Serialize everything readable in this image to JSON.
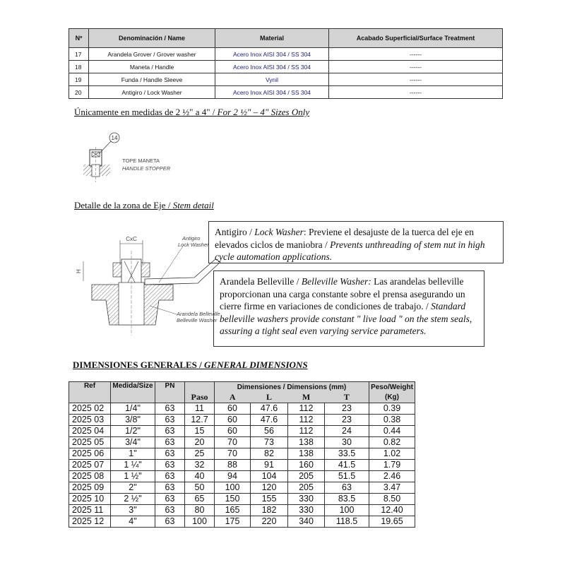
{
  "parts_table": {
    "headers": [
      "Nº",
      "Denominación / Name",
      "Material",
      "Acabado Superficial/Surface Treatment"
    ],
    "rows": [
      [
        "17",
        "Arandela Grover / Grover washer",
        "Acero Inox AISI 304  /  SS 304",
        "------"
      ],
      [
        "18",
        "Maneta / Handle",
        "Acero Inox AISI 304  /  SS 304",
        "------"
      ],
      [
        "19",
        "Funda / Handle Sleeve",
        "Vynil",
        "------"
      ],
      [
        "20",
        "Antigiro / Lock Washer",
        "Acero Inox AISI 304  /  SS 304",
        "------"
      ]
    ]
  },
  "sizes_note": {
    "es": "Únicamente en medidas de 2 ½\" a 4\" / ",
    "en": "For 2 ½\" – 4\" Sizes Only"
  },
  "stopper_drawing": {
    "callout": "14",
    "label_es": "TOPE MANETA",
    "label_en": "HANDLE STOPPER"
  },
  "stem_heading": {
    "es": "Detalle de la zona de Eje / ",
    "en": "Stem detail"
  },
  "stem_drawing": {
    "cxc": "CxC",
    "h": "H",
    "lock_es": "Antigiro",
    "lock_en": "Lock Washer",
    "bell_es": "Arandela Belleville",
    "bell_en": "Belleville Washer"
  },
  "lock_box": {
    "es_term": "Antigiro / ",
    "en_term": "Lock Washer",
    "es_text": ": Previene el desajuste de la tuerca del eje en elevados ciclos de maniobra / ",
    "en_text": "Prevents unthreading of stem nut in high cycle automation applications."
  },
  "belleville_box": {
    "es_term": "Arandela Belleville /  ",
    "en_term": "Belleville Washer:",
    "es_text": " Las arandelas belleville proporcionan una carga constante sobre el prensa asegurando un cierre firme en variaciones de condiciones de trabajo. / ",
    "en_text": "Standard belleville washers provide constant \" live load \" on the stem seals, assuring a tight seal even varying service parameters."
  },
  "dims_heading": {
    "es": "DIMENSIONES GENERALES / ",
    "en": "GENERAL DIMENSIONS"
  },
  "dims_table": {
    "headers": {
      "ref": "Ref",
      "size": "Medida/Size",
      "pn": "PN",
      "dims": "Dimensiones / Dimensions (mm)",
      "weight": "Peso/Weight",
      "weight_unit": "(Kg)",
      "paso": "Paso",
      "a": "A",
      "l": "L",
      "m": "M",
      "t": "T"
    },
    "rows": [
      [
        "2025 02",
        "1/4\"",
        "63",
        "11",
        "60",
        "47.6",
        "112",
        "23",
        "0.39"
      ],
      [
        "2025 03",
        "3/8\"",
        "63",
        "12.7",
        "60",
        "47.6",
        "112",
        "23",
        "0.38"
      ],
      [
        "2025 04",
        "1/2\"",
        "63",
        "15",
        "60",
        "56",
        "112",
        "24",
        "0.44"
      ],
      [
        "2025 05",
        "3/4\"",
        "63",
        "20",
        "70",
        "73",
        "138",
        "30",
        "0.82"
      ],
      [
        "2025 06",
        "1\"",
        "63",
        "25",
        "70",
        "82",
        "138",
        "33.5",
        "1.02"
      ],
      [
        "2025 07",
        "1 ¼\"",
        "63",
        "32",
        "88",
        "91",
        "160",
        "41.5",
        "1.79"
      ],
      [
        "2025 08",
        "1 ½\"",
        "63",
        "40",
        "94",
        "104",
        "205",
        "51.5",
        "2.46"
      ],
      [
        "2025 09",
        "2\"",
        "63",
        "50",
        "100",
        "120",
        "205",
        "63",
        "3.47"
      ],
      [
        "2025 10",
        "2 ½\"",
        "63",
        "65",
        "150",
        "155",
        "330",
        "83.5",
        "8.50"
      ],
      [
        "2025 11",
        "3\"",
        "63",
        "80",
        "165",
        "182",
        "330",
        "100",
        "12.40"
      ],
      [
        "2025 12",
        "4\"",
        "63",
        "100",
        "175",
        "220",
        "340",
        "118.5",
        "19.65"
      ]
    ]
  }
}
